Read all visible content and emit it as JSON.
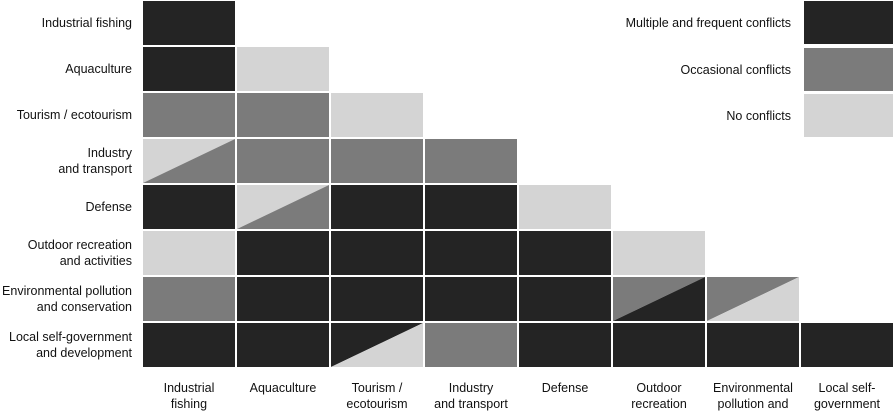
{
  "colors": {
    "frequent": "#242424",
    "occasional": "#7b7b7b",
    "none": "#d4d4d4",
    "grid": "#ffffff"
  },
  "legend": [
    {
      "key": "frequent",
      "label": "Multiple and frequent conflicts"
    },
    {
      "key": "occasional",
      "label": "Occasional conflicts"
    },
    {
      "key": "none",
      "label": "No conflicts"
    }
  ],
  "rows": [
    "Industrial fishing",
    "Aquaculture",
    "Tourism / ecotourism",
    "Industry\nand transport",
    "Defense",
    "Outdoor recreation\nand activities",
    "Environmental pollution\nand conservation",
    "Local self-government\nand development"
  ],
  "columns": [
    "Industrial\nfishing",
    "Aquaculture",
    "Tourism /\necotourism",
    "Industry\nand transport",
    "Defense",
    "Outdoor\nrecreation",
    "Environmental\npollution and",
    "Local self-\ngovernment"
  ],
  "matrix": [
    [
      "frequent"
    ],
    [
      "frequent",
      "none"
    ],
    [
      "occasional",
      "occasional",
      "none"
    ],
    [
      [
        "none",
        "occasional"
      ],
      "occasional",
      "occasional",
      "occasional"
    ],
    [
      "frequent",
      [
        "none",
        "occasional"
      ],
      "frequent",
      "frequent",
      "none"
    ],
    [
      "none",
      "frequent",
      "frequent",
      "frequent",
      "frequent",
      "none"
    ],
    [
      "occasional",
      "frequent",
      "frequent",
      "frequent",
      "frequent",
      [
        "occasional",
        "frequent"
      ],
      [
        "occasional",
        "none"
      ]
    ],
    [
      "frequent",
      "frequent",
      [
        "frequent",
        "none"
      ],
      "occasional",
      "frequent",
      "frequent",
      "frequent",
      "frequent"
    ]
  ]
}
